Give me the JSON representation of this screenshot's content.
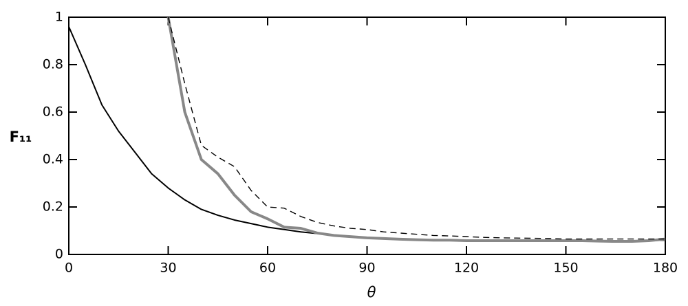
{
  "chart_data": {
    "type": "line",
    "xlabel": "θ",
    "ylabel": "F₁₁",
    "x": [
      0,
      5,
      10,
      15,
      20,
      25,
      30,
      35,
      40,
      45,
      50,
      55,
      60,
      65,
      70,
      75,
      80,
      85,
      90,
      95,
      100,
      105,
      110,
      115,
      120,
      125,
      130,
      135,
      140,
      145,
      150,
      155,
      160,
      165,
      170,
      175,
      180
    ],
    "series": [
      {
        "color": "#000000",
        "width": 2,
        "dash": false,
        "values": [
          0.96,
          0.8,
          0.63,
          0.52,
          0.43,
          0.34,
          0.28,
          0.23,
          0.19,
          0.165,
          0.145,
          0.13,
          0.115,
          0.105,
          0.095,
          0.088,
          0.08,
          0.075,
          0.07,
          0.067,
          0.064,
          0.062,
          0.06,
          0.06,
          0.058,
          0.058,
          0.058,
          0.058,
          0.058,
          0.058,
          0.058,
          0.058,
          0.058,
          0.058,
          0.058,
          0.058,
          0.06
        ]
      },
      {
        "color": "#888888",
        "width": 4,
        "dash": false,
        "values": [
          null,
          null,
          null,
          null,
          null,
          null,
          1.0,
          0.6,
          0.4,
          0.34,
          0.25,
          0.18,
          0.15,
          0.115,
          0.11,
          0.09,
          0.08,
          0.075,
          0.07,
          0.067,
          0.064,
          0.062,
          0.06,
          0.06,
          0.058,
          0.058,
          0.058,
          0.058,
          0.058,
          0.058,
          0.058,
          0.058,
          0.056,
          0.055,
          0.055,
          0.058,
          0.065
        ]
      },
      {
        "color": "#000000",
        "width": 1.4,
        "dash": true,
        "values": [
          null,
          null,
          null,
          null,
          null,
          null,
          1.0,
          0.72,
          0.46,
          0.41,
          0.37,
          0.27,
          0.2,
          0.195,
          0.16,
          0.135,
          0.12,
          0.11,
          0.105,
          0.095,
          0.09,
          0.085,
          0.08,
          0.078,
          0.075,
          0.072,
          0.07,
          0.069,
          0.068,
          0.067,
          0.065,
          0.065,
          0.065,
          0.065,
          0.065,
          0.065,
          0.065
        ]
      }
    ],
    "xlim": [
      0,
      180
    ],
    "xticks": [
      0,
      30,
      60,
      90,
      120,
      150,
      180
    ],
    "ylim": [
      0,
      1
    ],
    "yticks": [
      0,
      0.2,
      0.4,
      0.6,
      0.8,
      1
    ]
  }
}
